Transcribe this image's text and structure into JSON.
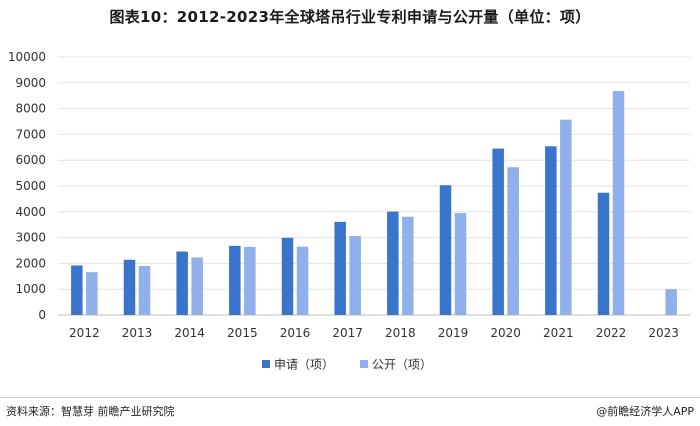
{
  "header": {
    "title": "图表10：2012-2023年全球塔吊行业专利申请与公开量（单位：项）"
  },
  "footer": {
    "source": "资料来源：智慧芽 前瞻产业研究院",
    "brand": "@前瞻经济学人APP"
  },
  "chart_data": {
    "type": "bar",
    "title": "图表10：2012-2023年全球塔吊行业专利申请与公开量（单位：项）",
    "categories": [
      "2012",
      "2013",
      "2014",
      "2015",
      "2016",
      "2017",
      "2018",
      "2019",
      "2020",
      "2021",
      "2022",
      "2023"
    ],
    "series": [
      {
        "name": "申请（项）",
        "color": "#3a75cc",
        "values": [
          1920,
          2140,
          2460,
          2680,
          2990,
          3610,
          4010,
          5030,
          6450,
          6540,
          4740,
          null
        ]
      },
      {
        "name": "公开（项）",
        "color": "#8fb0ea",
        "values": [
          1660,
          1900,
          2230,
          2640,
          2650,
          3060,
          3810,
          3950,
          5730,
          7570,
          8680,
          1000
        ]
      }
    ],
    "yticks": [
      "0",
      "1000",
      "2000",
      "3000",
      "4000",
      "5000",
      "6000",
      "7000",
      "8000",
      "9000",
      "10000"
    ],
    "ylim": [
      0,
      10000
    ],
    "grid": true,
    "legend_position": "bottom-center"
  }
}
